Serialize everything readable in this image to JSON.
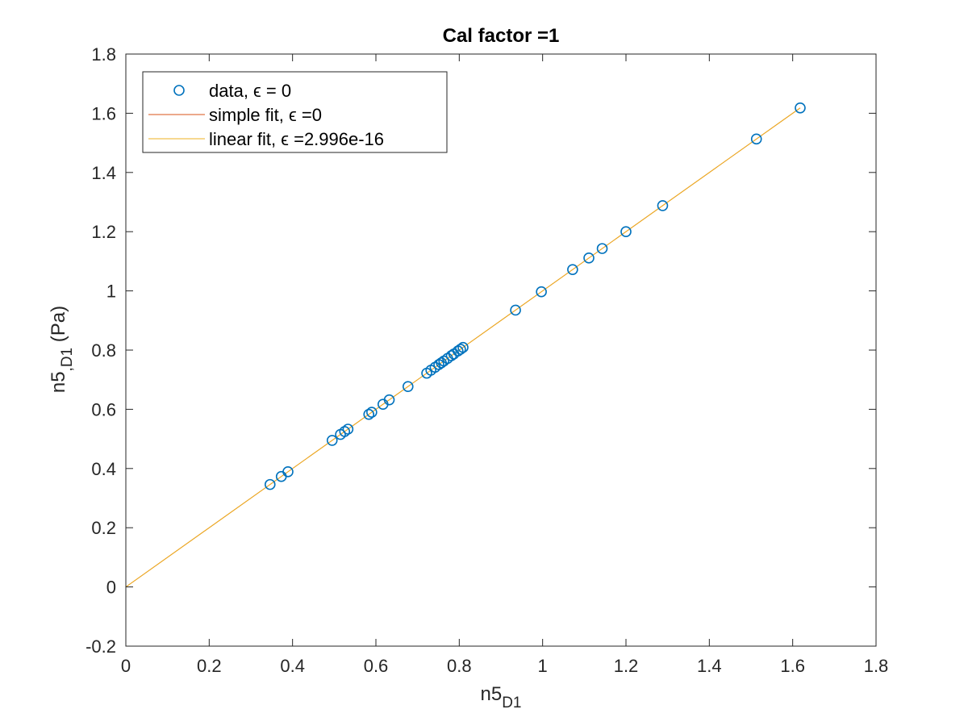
{
  "chart_data": {
    "type": "scatter",
    "title": "Cal factor =1",
    "xlabel": {
      "base": "n5",
      "sub": "D1"
    },
    "ylabel": {
      "base": "n5",
      "sub": ",D1",
      "unit": " (Pa)"
    },
    "xlim": [
      0,
      1.8
    ],
    "ylim": [
      -0.2,
      1.8
    ],
    "xticks": [
      0,
      0.2,
      0.4,
      0.6,
      0.8,
      1,
      1.2,
      1.4,
      1.6,
      1.8
    ],
    "xtick_labels": [
      "0",
      "0.2",
      "0.4",
      "0.6",
      "0.8",
      "1",
      "1.2",
      "1.4",
      "1.6",
      "1.8"
    ],
    "yticks": [
      -0.2,
      0,
      0.2,
      0.4,
      0.6,
      0.8,
      1,
      1.2,
      1.4,
      1.6,
      1.8
    ],
    "ytick_labels": [
      "-0.2",
      "0",
      "0.2",
      "0.4",
      "0.6",
      "0.8",
      "1",
      "1.2",
      "1.4",
      "1.6",
      "1.8"
    ],
    "grid": false,
    "legend_position": "top-left",
    "colors": {
      "data": "#0072BD",
      "simple_fit": "#D95319",
      "linear_fit": "#EDB120",
      "axes": "#262626"
    },
    "series": [
      {
        "name": "data, ϵ = 0",
        "style": "markers",
        "x": [
          0.346,
          0.373,
          0.389,
          0.495,
          0.515,
          0.525,
          0.533,
          0.583,
          0.59,
          0.617,
          0.632,
          0.677,
          0.722,
          0.732,
          0.742,
          0.751,
          0.757,
          0.763,
          0.772,
          0.781,
          0.787,
          0.797,
          0.803,
          0.809,
          0.935,
          0.997,
          1.072,
          1.111,
          1.143,
          1.2,
          1.288,
          1.513,
          1.618
        ],
        "y": [
          0.346,
          0.373,
          0.389,
          0.495,
          0.515,
          0.525,
          0.533,
          0.583,
          0.59,
          0.617,
          0.632,
          0.677,
          0.722,
          0.732,
          0.742,
          0.751,
          0.757,
          0.763,
          0.772,
          0.781,
          0.787,
          0.797,
          0.803,
          0.809,
          0.935,
          0.997,
          1.072,
          1.111,
          1.143,
          1.2,
          1.288,
          1.513,
          1.618
        ]
      },
      {
        "name": "simple fit, ϵ =0",
        "style": "line",
        "x": [
          0,
          1.618
        ],
        "y": [
          0,
          1.618
        ]
      },
      {
        "name": "linear fit, ϵ =2.996e-16",
        "style": "line",
        "x": [
          0,
          1.618
        ],
        "y": [
          0,
          1.618
        ]
      }
    ]
  }
}
